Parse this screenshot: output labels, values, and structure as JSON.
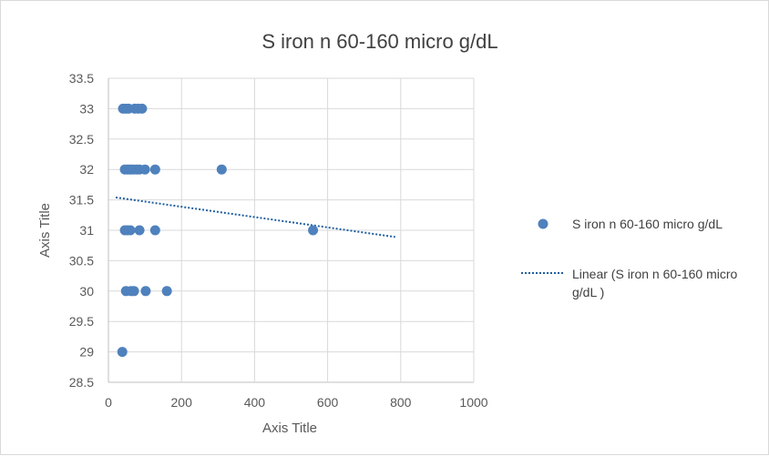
{
  "chart_data": {
    "type": "scatter",
    "title": "S iron n 60-160 micro g/dL",
    "xlabel": "Axis Title",
    "ylabel": "Axis Title",
    "xlim": [
      0,
      1000
    ],
    "ylim": [
      28.5,
      33.5
    ],
    "xticks": [
      "0",
      "200",
      "400",
      "600",
      "800",
      "1000"
    ],
    "yticks": [
      "28.5",
      "29",
      "29.5",
      "30",
      "30.5",
      "31",
      "31.5",
      "32",
      "32.5",
      "33",
      "33.5"
    ],
    "grid": true,
    "legend_position": "right",
    "series": [
      {
        "name": "S iron n 60-160 micro g/dL",
        "color": "#4f81bd",
        "points": [
          [
            40,
            33
          ],
          [
            48,
            33
          ],
          [
            55,
            33
          ],
          [
            72,
            33
          ],
          [
            82,
            33
          ],
          [
            92,
            33
          ],
          [
            45,
            32
          ],
          [
            52,
            32
          ],
          [
            58,
            32
          ],
          [
            63,
            32
          ],
          [
            70,
            32
          ],
          [
            78,
            32
          ],
          [
            85,
            32
          ],
          [
            100,
            32
          ],
          [
            128,
            32
          ],
          [
            310,
            32
          ],
          [
            45,
            31
          ],
          [
            52,
            31
          ],
          [
            60,
            31
          ],
          [
            85,
            31
          ],
          [
            128,
            31
          ],
          [
            560,
            31
          ],
          [
            48,
            30
          ],
          [
            62,
            30
          ],
          [
            70,
            30
          ],
          [
            102,
            30
          ],
          [
            160,
            30
          ],
          [
            38,
            29
          ]
        ]
      }
    ],
    "trendline": {
      "name": "Linear (S iron n 60-160 micro g/dL )",
      "color": "#1f5f9f",
      "style": "dotted",
      "from": [
        20,
        31.54
      ],
      "to": [
        785,
        30.89
      ]
    }
  }
}
